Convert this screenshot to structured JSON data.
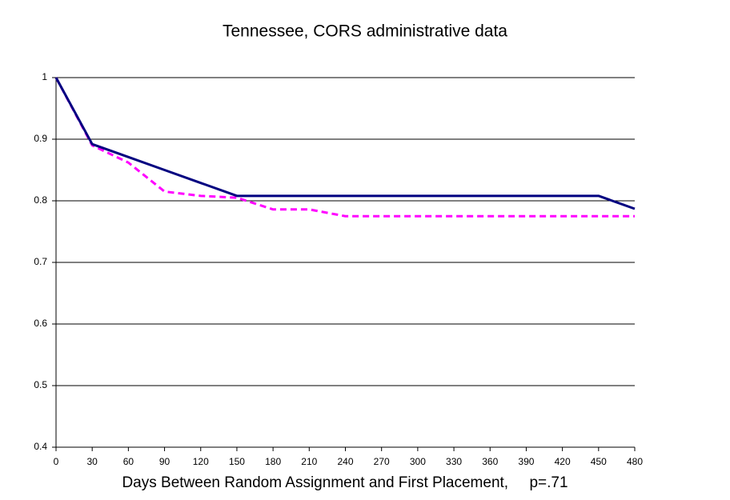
{
  "chart_data": {
    "type": "line",
    "title": "Tennessee, CORS administrative data",
    "x_label": "Days Between Random Assignment and First Placement,     p=.71",
    "x": [
      0,
      30,
      60,
      90,
      120,
      150,
      180,
      210,
      240,
      270,
      300,
      330,
      360,
      390,
      420,
      450,
      480
    ],
    "series": [
      {
        "color": "#000080",
        "dash": false,
        "values": [
          1,
          0.892,
          0.871,
          0.85,
          0.829,
          0.808,
          0.808,
          0.808,
          0.808,
          0.808,
          0.808,
          0.808,
          0.808,
          0.808,
          0.808,
          0.808,
          0.787
        ]
      },
      {
        "color": "#ff00ff",
        "dash": true,
        "values": [
          1,
          0.89,
          0.862,
          0.815,
          0.808,
          0.805,
          0.786,
          0.786,
          0.775,
          0.775,
          0.775,
          0.775,
          0.775,
          0.775,
          0.775,
          0.775,
          0.775
        ]
      }
    ],
    "xlim": [
      0,
      480
    ],
    "xticks": [
      0,
      30,
      60,
      90,
      120,
      150,
      180,
      210,
      240,
      270,
      300,
      330,
      360,
      390,
      420,
      450,
      480
    ],
    "ylim": [
      0.4,
      1
    ],
    "yticks": [
      0.4,
      0.5,
      0.6,
      0.7,
      0.8,
      0.9,
      1
    ],
    "grid": true
  }
}
